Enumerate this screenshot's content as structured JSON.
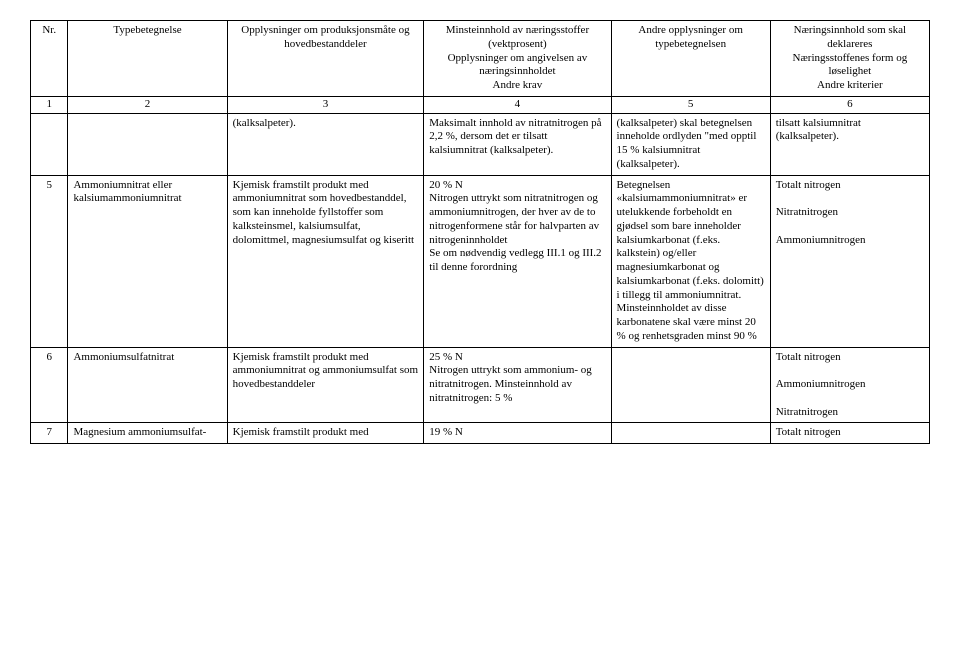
{
  "header": {
    "c1": "Nr.",
    "c2": "Typebetegnelse",
    "c3": "Opplysninger om produksjonsmåte og hovedbestanddeler",
    "c4": "Minsteinnhold av næringsstoffer (vektprosent)\nOpplysninger om angivelsen av næringsinnholdet\nAndre krav",
    "c5": "Andre opplysninger om typebetegnelsen",
    "c6": "Næringsinnhold som skal deklareres\nNæringsstoffenes form og løselighet\nAndre kriterier"
  },
  "numrow": {
    "c1": "1",
    "c2": "2",
    "c3": "3",
    "c4": "4",
    "c5": "5",
    "c6": "6"
  },
  "r0": {
    "c3": "(kalksalpeter).",
    "c4": "Maksimalt innhold av nitratnitrogen på 2,2 %, dersom det er tilsatt kalsiumnitrat (kalksalpeter).",
    "c5": "(kalksalpeter) skal betegnelsen inneholde ordlyden \"med opptil 15 % kalsiumnitrat (kalksalpeter).",
    "c6": "tilsatt kalsiumnitrat (kalksalpeter)."
  },
  "r5": {
    "c1": "5",
    "c2": "Ammoniumnitrat eller kalsiumammoniumnitrat",
    "c3": "Kjemisk framstilt produkt med ammoniumnitrat som hovedbestanddel, som kan inneholde fyllstoffer som kalksteinsmel, kalsiumsulfat, dolomittmel, magnesiumsulfat og kiseritt",
    "c4": "20 % N\nNitrogen uttrykt som nitratnitrogen og ammoniumnitrogen, der hver av de to nitrogenformene står for halvparten av nitrogeninnholdet\nSe om nødvendig vedlegg III.1 og III.2 til denne forordning",
    "c5": "Betegnelsen «kalsiumammoniumnitrat» er utelukkende forbeholdt en gjødsel som bare inneholder kalsiumkarbonat (f.eks. kalkstein) og/eller magnesiumkarbonat og kalsiumkarbonat (f.eks. dolomitt) i tillegg til ammoniumnitrat. Minsteinnholdet av disse karbonatene skal være minst 20 % og renhetsgraden minst 90 %",
    "c6": "Totalt nitrogen\n\nNitratnitrogen\n\nAmmoniumnitrogen"
  },
  "r6": {
    "c1": "6",
    "c2": "Ammoniumsulfatnitrat",
    "c3": "Kjemisk framstilt produkt med ammoniumnitrat og ammoniumsulfat som hovedbestanddeler",
    "c4": "25 % N\nNitrogen uttrykt som ammonium- og nitratnitrogen. Minsteinnhold av nitratnitrogen: 5 %",
    "c5": "",
    "c6": "Totalt nitrogen\n\nAmmoniumnitrogen\n\nNitratnitrogen"
  },
  "r7": {
    "c1": "7",
    "c2": "Magnesium ammoniumsulfat-",
    "c3": "Kjemisk framstilt produkt med",
    "c4": "19 % N",
    "c5": "",
    "c6": "Totalt nitrogen"
  }
}
